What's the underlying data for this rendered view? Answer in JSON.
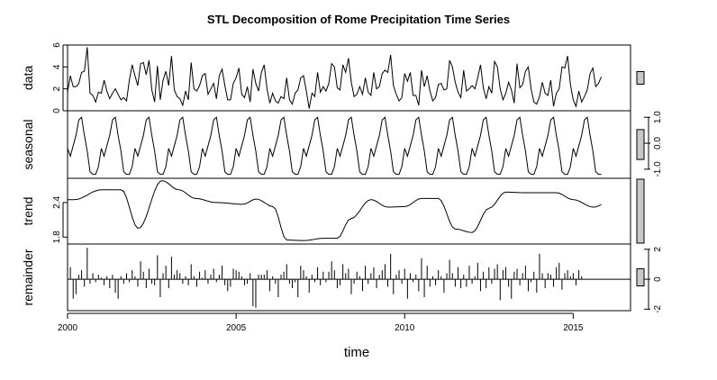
{
  "chart_data": {
    "type": "line",
    "title": "STL Decomposition of Rome Precipitation Time Series",
    "xlabel": "time",
    "x_start": 2000,
    "frequency": 12,
    "xlim": [
      2000,
      2016.7
    ],
    "x_ticks": [
      2000,
      2005,
      2010,
      2015
    ],
    "x_tick_labels": [
      "2000",
      "2005",
      "2010",
      "2015"
    ],
    "panels": [
      {
        "name": "data",
        "label": "data",
        "ylim": [
          0,
          6
        ],
        "y_ticks": [
          0,
          2,
          4,
          6
        ],
        "y_tick_labels": [
          "0",
          "2",
          "4",
          "6"
        ],
        "axis_side": "left",
        "style": "line",
        "values": [
          1.7,
          3.2,
          2.2,
          2.2,
          2.5,
          3.5,
          3.6,
          5.8,
          1.6,
          1.4,
          0.8,
          1.7,
          1.6,
          2.8,
          1.8,
          1.1,
          1.6,
          2.0,
          1.5,
          1.0,
          1.2,
          0.9,
          2.8,
          4.2,
          3.2,
          2.3,
          4.3,
          4.4,
          3.3,
          4.6,
          1.9,
          0.8,
          4.1,
          1.0,
          2.8,
          3.6,
          2.3,
          5.0,
          1.9,
          1.3,
          1.1,
          0.5,
          1.8,
          1.0,
          4.4,
          2.0,
          1.8,
          2.3,
          3.2,
          3.4,
          1.5,
          2.0,
          2.5,
          1.1,
          3.2,
          3.8,
          2.3,
          1.0,
          1.0,
          2.5,
          3.0,
          3.9,
          1.5,
          1.2,
          2.2,
          0.8,
          3.8,
          2.5,
          1.8,
          3.5,
          4.2,
          2.0,
          0.7,
          1.6,
          0.9,
          0.7,
          1.3,
          1.1,
          3.0,
          1.0,
          0.6,
          1.6,
          1.9,
          3.0,
          3.2,
          1.8,
          0.2,
          1.6,
          1.3,
          3.5,
          1.7,
          2.2,
          1.8,
          2.5,
          4.3,
          4.0,
          2.1,
          1.9,
          4.2,
          3.5,
          4.8,
          2.6,
          1.3,
          1.5,
          2.2,
          1.5,
          3.0,
          1.7,
          1.4,
          3.5,
          2.0,
          2.2,
          3.4,
          3.7,
          3.5,
          5.1,
          2.3,
          1.5,
          0.9,
          1.2,
          3.4,
          2.7,
          3.5,
          1.4,
          1.4,
          0.5,
          3.7,
          2.2,
          3.2,
          1.8,
          0.9,
          1.2,
          2.4,
          2.5,
          1.9,
          2.0,
          4.6,
          4.0,
          2.6,
          1.7,
          1.2,
          3.7,
          1.8,
          2.0,
          2.3,
          2.0,
          3.0,
          4.2,
          2.1,
          1.1,
          2.2,
          1.6,
          4.5,
          4.0,
          2.0,
          1.0,
          1.6,
          2.6,
          1.9,
          0.7,
          4.3,
          2.1,
          2.4,
          3.6,
          4.0,
          2.0,
          0.8,
          0.6,
          1.3,
          2.6,
          1.6,
          1.4,
          2.8,
          0.4,
          1.6,
          2.0,
          4.0,
          3.9,
          5.0,
          2.4,
          1.0,
          0.4,
          1.8,
          0.8,
          1.3,
          1.9,
          3.4,
          3.9,
          2.2,
          2.5,
          3.1
        ]
      },
      {
        "name": "seasonal",
        "label": "seasonal",
        "ylim": [
          -1.35,
          1.25
        ],
        "y_ticks": [
          -1.0,
          0.0,
          1.0
        ],
        "y_tick_labels": [
          "-1.0",
          "0.0",
          "1.0"
        ],
        "axis_side": "right",
        "style": "line",
        "cycle": [
          -0.2,
          -0.5,
          -0.1,
          0.3,
          0.9,
          1.0,
          0.3,
          -0.3,
          -1.1,
          -1.2,
          -1.2,
          -0.9
        ]
      },
      {
        "name": "trend",
        "label": "trend",
        "ylim": [
          1.68,
          2.82
        ],
        "y_ticks": [
          1.8,
          2.4
        ],
        "y_tick_labels": [
          "1.8",
          "2.4"
        ],
        "axis_side": "left",
        "style": "line",
        "knots_x": [
          2000.2,
          2001.0,
          2001.6,
          2002.1,
          2002.8,
          2003.3,
          2003.8,
          2004.4,
          2005.2,
          2005.6,
          2006.1,
          2006.5,
          2007.0,
          2007.6,
          2008.0,
          2008.4,
          2009.0,
          2009.5,
          2010.0,
          2010.5,
          2011.0,
          2011.5,
          2012.0,
          2012.5,
          2013.0,
          2013.6,
          2014.0,
          2014.5,
          2015.0,
          2015.6,
          2016.1,
          2016.6
        ],
        "knots_y": [
          2.45,
          2.62,
          2.62,
          1.95,
          2.78,
          2.62,
          2.47,
          2.4,
          2.37,
          2.46,
          2.33,
          1.75,
          1.74,
          1.78,
          1.78,
          2.12,
          2.45,
          2.32,
          2.33,
          2.47,
          2.47,
          1.94,
          1.88,
          2.3,
          2.58,
          2.57,
          2.57,
          2.57,
          2.45,
          2.32,
          2.42,
          2.66
        ]
      },
      {
        "name": "remainder",
        "label": "remainder",
        "ylim": [
          -2.1,
          2.35
        ],
        "y_ticks": [
          -2,
          0,
          2
        ],
        "y_tick_labels": [
          "-2",
          "0",
          "2"
        ],
        "axis_side": "right",
        "style": "bars",
        "values": [
          0.1,
          0.8,
          -1.3,
          -1.0,
          0.3,
          0.6,
          -0.5,
          2.1,
          -0.3,
          0.4,
          -0.2,
          0.3,
          0.1,
          -0.4,
          0.2,
          -0.6,
          0.3,
          -0.9,
          -1.3,
          0.2,
          -0.3,
          0.4,
          -0.2,
          0.6,
          0.2,
          -0.5,
          1.2,
          0.5,
          -0.6,
          0.7,
          -0.3,
          -0.4,
          1.6,
          -1.2,
          0.4,
          0.9,
          -0.6,
          1.5,
          0.3,
          0.6,
          0.4,
          -0.3,
          0.2,
          -0.4,
          1.0,
          0.2,
          -0.5,
          0.5,
          0.1,
          0.6,
          -0.3,
          0.3,
          0.7,
          -0.2,
          0.3,
          0.9,
          -0.4,
          -0.8,
          -0.5,
          0.7,
          0.6,
          0.5,
          0.2,
          -0.4,
          -0.3,
          0.4,
          -1.8,
          -1.9,
          0.3,
          0.3,
          0.3,
          0.6,
          -0.8,
          0.2,
          -0.3,
          -1.2,
          0.3,
          0.5,
          1.0,
          -0.3,
          -0.6,
          -0.2,
          -1.2,
          0.9,
          0.6,
          0.2,
          -0.9,
          0.3,
          -0.2,
          0.8,
          -0.4,
          0.5,
          -0.2,
          0.5,
          1.2,
          0.6,
          -0.6,
          -0.4,
          1.0,
          0.4,
          0.7,
          -1.0,
          -0.3,
          0.5,
          0.2,
          -0.8,
          0.9,
          -0.3,
          0.4,
          0.8,
          -0.6,
          0.3,
          0.6,
          1.0,
          -0.5,
          1.7,
          -1.0,
          0.3,
          0.6,
          -0.3,
          0.7,
          -1.3,
          0.4,
          -0.2,
          0.3,
          -0.8,
          1.4,
          -1.2,
          0.9,
          -0.5,
          0.2,
          -0.4,
          0.6,
          0.2,
          -0.9,
          0.4,
          1.3,
          0.4,
          -0.5,
          0.8,
          -0.6,
          0.3,
          -0.5,
          0.9,
          -0.3,
          0.2,
          1.1,
          -0.8,
          0.5,
          -0.6,
          0.8,
          -0.3,
          0.7,
          1.0,
          -1.4,
          0.6,
          0.8,
          -0.5,
          -1.3,
          0.5,
          0.7,
          -0.4,
          0.4,
          0.9,
          -0.8,
          -0.2,
          0.5,
          -0.9,
          1.7,
          0.4,
          -0.6,
          0.4,
          0.3,
          -0.5,
          0.8,
          1.1,
          -0.7,
          0.4,
          0.6,
          0.2,
          0.4,
          -0.4,
          0.6,
          0.2
        ]
      }
    ]
  }
}
